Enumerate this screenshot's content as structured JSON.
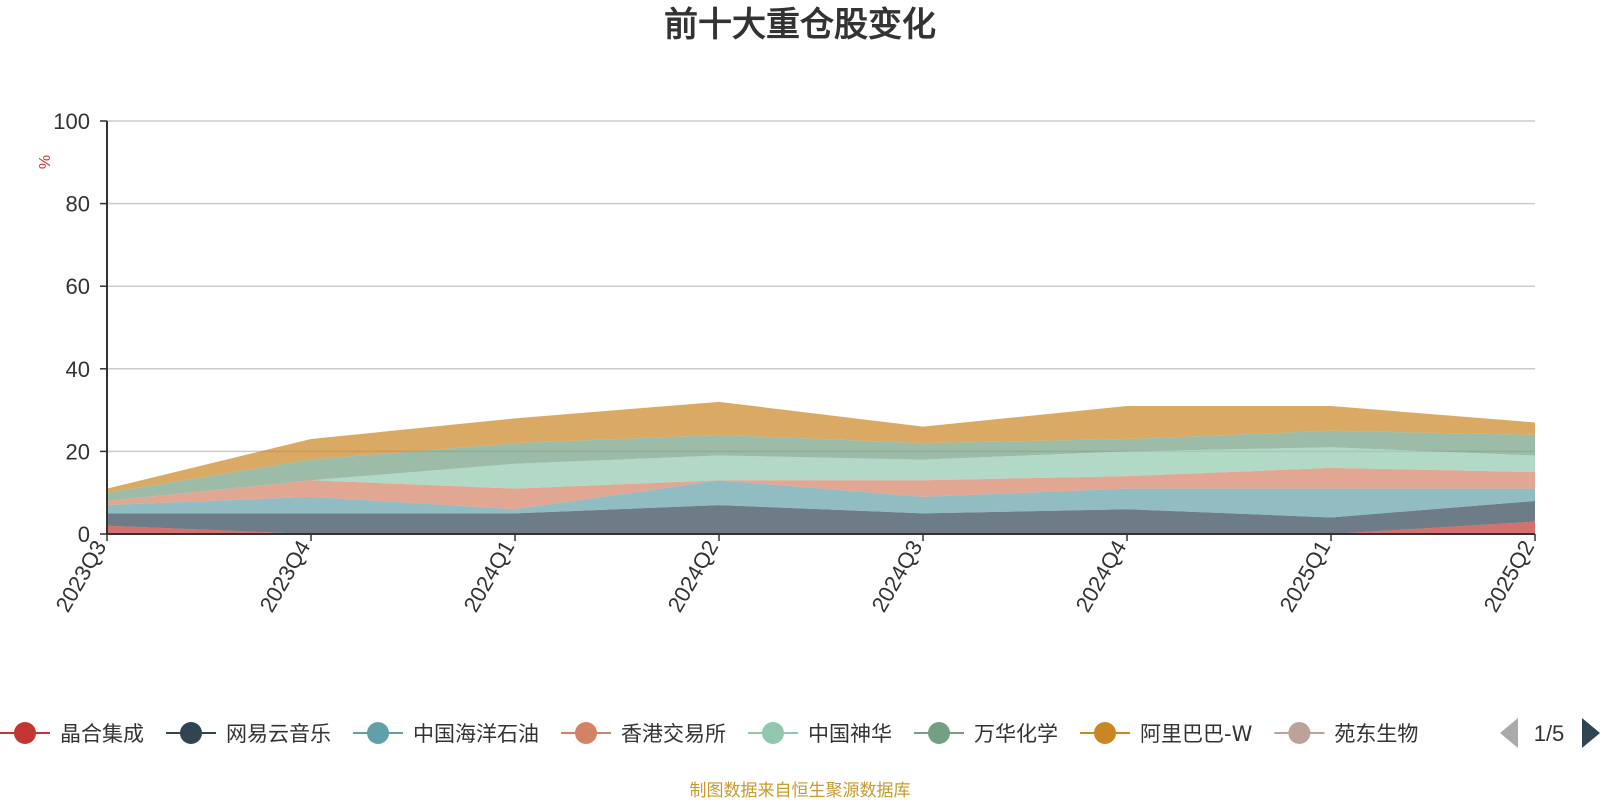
{
  "chart_data": {
    "type": "area",
    "title": "前十大重仓股变化",
    "ylabel": "%",
    "ylim": [
      0,
      100
    ],
    "yticks": [
      "0",
      "20",
      "40",
      "60",
      "80",
      "100"
    ],
    "categories": [
      "2023Q3",
      "2023Q4",
      "2024Q1",
      "2024Q2",
      "2024Q3",
      "2024Q4",
      "2025Q1",
      "2025Q2"
    ],
    "stacked": true,
    "grid": true,
    "legend_position": "bottom",
    "series": [
      {
        "name": "晶合集成",
        "color": "#c23531",
        "values": [
          2,
          0,
          0,
          0,
          0,
          0,
          0,
          3
        ]
      },
      {
        "name": "网易云音乐",
        "color": "#2f4554",
        "values": [
          3,
          5,
          5,
          7,
          5,
          6,
          4,
          5
        ]
      },
      {
        "name": "中国海洋石油",
        "color": "#61a0a8",
        "values": [
          2,
          4,
          1,
          6,
          4,
          5,
          7,
          3
        ]
      },
      {
        "name": "香港交易所",
        "color": "#d48265",
        "values": [
          1,
          4,
          5,
          0,
          4,
          3,
          5,
          4
        ]
      },
      {
        "name": "中国神华",
        "color": "#91c7ae",
        "values": [
          0,
          0,
          6,
          6,
          5,
          6,
          5,
          4
        ]
      },
      {
        "name": "万华化学",
        "color": "#749f83",
        "values": [
          2,
          5,
          5,
          5,
          4,
          3,
          4,
          5
        ]
      },
      {
        "name": "阿里巴巴-W",
        "color": "#ca8622",
        "values": [
          1,
          5,
          6,
          8,
          4,
          8,
          6,
          3
        ]
      },
      {
        "name": "苑东生物",
        "color": "#bda29a"
      }
    ],
    "legend_page": "1/5",
    "source_note": "制图数据来自恒生聚源数据库"
  }
}
